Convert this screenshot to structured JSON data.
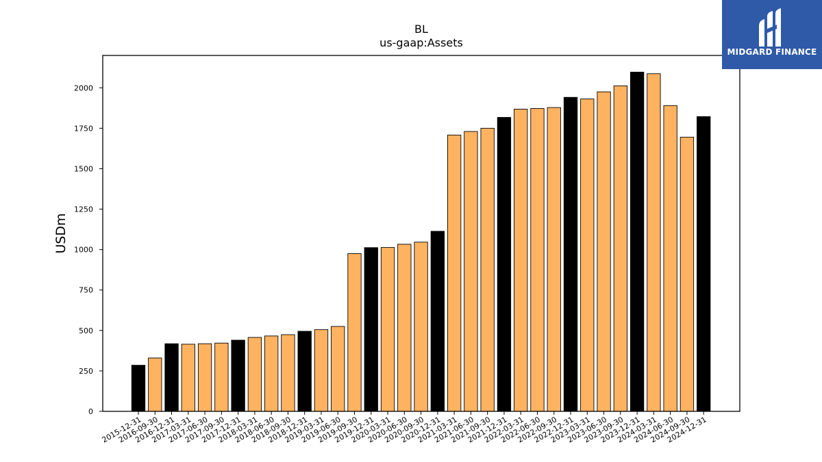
{
  "chart_data": {
    "type": "bar",
    "title": "BL",
    "subtitle": "us-gaap:Assets",
    "ylabel": "USDm",
    "xlabel": "",
    "ylim": [
      0,
      2200
    ],
    "yticks": [
      0,
      250,
      500,
      750,
      1000,
      1250,
      1500,
      1750,
      2000
    ],
    "grid": false,
    "colors": {
      "annual": "#000000",
      "quarterly": "#ffb361",
      "edge": "#000000"
    },
    "categories": [
      "2015-12-31",
      "2016-09-30",
      "2016-12-31",
      "2017-03-31",
      "2017-06-30",
      "2017-09-30",
      "2017-12-31",
      "2018-03-31",
      "2018-06-30",
      "2018-09-30",
      "2018-12-31",
      "2019-03-31",
      "2019-06-30",
      "2019-09-30",
      "2019-12-31",
      "2020-03-31",
      "2020-06-30",
      "2020-09-30",
      "2020-12-31",
      "2021-03-31",
      "2021-06-30",
      "2021-09-30",
      "2021-12-31",
      "2022-03-31",
      "2022-06-30",
      "2022-09-30",
      "2022-12-31",
      "2023-03-31",
      "2023-06-30",
      "2023-09-30",
      "2023-12-31",
      "2024-03-31",
      "2024-06-30",
      "2024-09-30",
      "2024-12-31"
    ],
    "values": [
      285,
      330,
      418,
      415,
      418,
      422,
      440,
      457,
      466,
      474,
      495,
      505,
      525,
      975,
      1012,
      1013,
      1033,
      1046,
      1113,
      1708,
      1730,
      1750,
      1817,
      1868,
      1872,
      1878,
      1941,
      1931,
      1975,
      2012,
      2097,
      2087,
      1890,
      1695,
      1822
    ],
    "annual": [
      true,
      false,
      true,
      false,
      false,
      false,
      true,
      false,
      false,
      false,
      true,
      false,
      false,
      false,
      true,
      false,
      false,
      false,
      true,
      false,
      false,
      false,
      true,
      false,
      false,
      false,
      true,
      false,
      false,
      false,
      true,
      false,
      false,
      false,
      true
    ]
  },
  "logo": {
    "text": "MIDGARD FINANCE",
    "background": "#2e5aa8"
  }
}
